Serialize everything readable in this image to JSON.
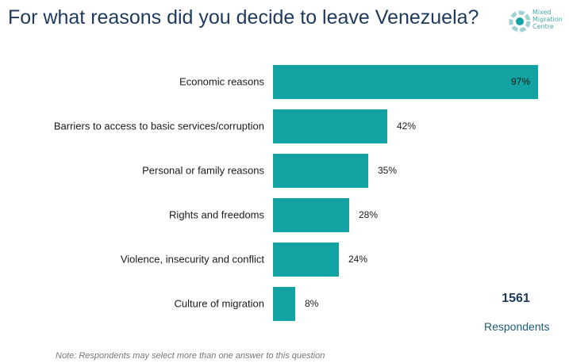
{
  "title": "For what reasons did you decide to leave Venezuela?",
  "logo": {
    "lines": [
      "Mixed",
      "Migration",
      "Centre"
    ],
    "color": "#4aa8a8"
  },
  "chart_data": {
    "type": "bar",
    "orientation": "horizontal",
    "categories": [
      "Economic reasons",
      "Barriers to access to basic services/corruption",
      "Personal or family reasons",
      "Rights and freedoms",
      "Violence, insecurity and conflict",
      "Culture of migration"
    ],
    "values": [
      97,
      42,
      35,
      28,
      24,
      8
    ],
    "value_labels": [
      "97%",
      "42%",
      "35%",
      "28%",
      "24%",
      "8%"
    ],
    "xlim": [
      0,
      100
    ],
    "bar_color": "#13a3a3",
    "grid": false,
    "legend": "none"
  },
  "respondents": {
    "count": "1561",
    "label": "Respondents"
  },
  "note": "Note: Respondents may select more than one answer to this question"
}
